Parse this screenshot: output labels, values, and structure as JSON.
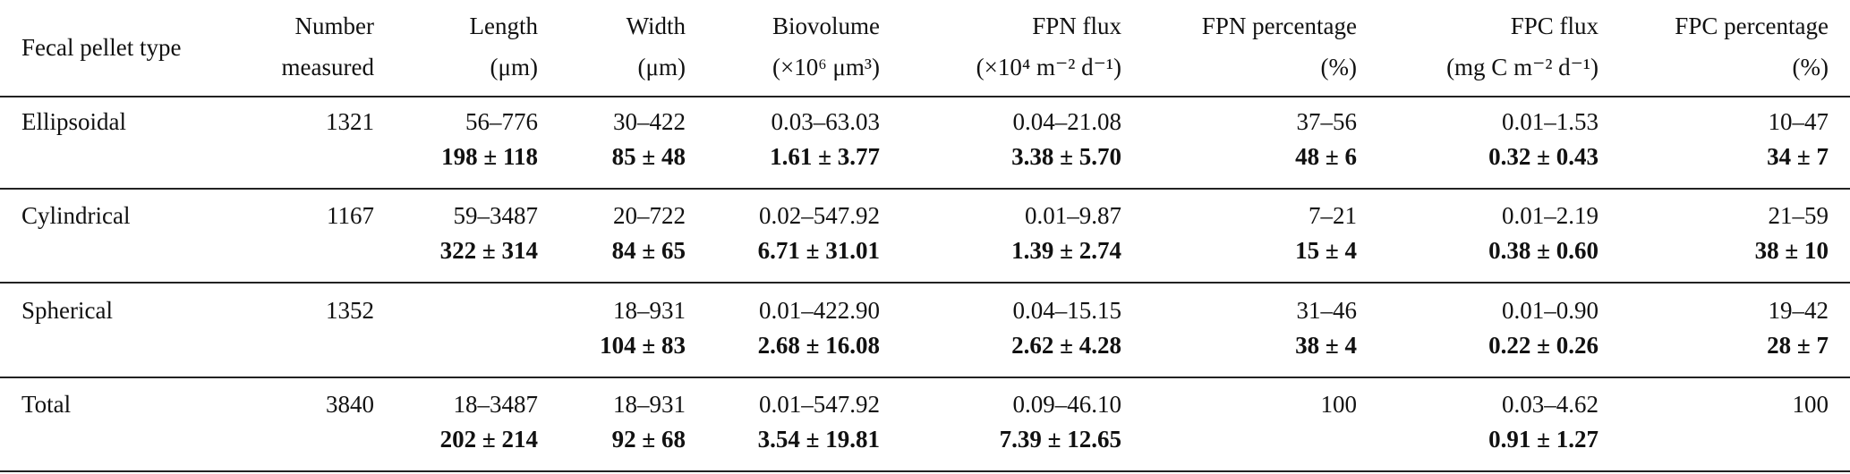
{
  "table": {
    "header": [
      [
        "Fecal pellet type"
      ],
      [
        "Number",
        "measured"
      ],
      [
        "Length",
        "(μm)"
      ],
      [
        "Width",
        "(μm)"
      ],
      [
        "Biovolume",
        "(×10⁶ μm³)"
      ],
      [
        "FPN flux",
        "(×10⁴ m⁻² d⁻¹)"
      ],
      [
        "FPN percentage",
        "(%)"
      ],
      [
        "FPC flux",
        "(mg C m⁻² d⁻¹)"
      ],
      [
        "FPC percentage",
        "(%)"
      ]
    ],
    "rows": [
      {
        "type": "Ellipsoidal",
        "count": 1321,
        "cells": [
          {
            "range": "56–776",
            "mean": "198 ± 118"
          },
          {
            "range": "30–422",
            "mean": "85 ± 48"
          },
          {
            "range": "0.03–63.03",
            "mean": "1.61 ± 3.77"
          },
          {
            "range": "0.04–21.08",
            "mean": "3.38 ± 5.70"
          },
          {
            "range": "37–56",
            "mean": "48 ± 6"
          },
          {
            "range": "0.01–1.53",
            "mean": "0.32 ± 0.43"
          },
          {
            "range": "10–47",
            "mean": "34 ± 7"
          }
        ]
      },
      {
        "type": "Cylindrical",
        "count": 1167,
        "cells": [
          {
            "range": "59–3487",
            "mean": "322 ± 314"
          },
          {
            "range": "20–722",
            "mean": "84 ± 65"
          },
          {
            "range": "0.02–547.92",
            "mean": "6.71 ± 31.01"
          },
          {
            "range": "0.01–9.87",
            "mean": "1.39 ± 2.74"
          },
          {
            "range": "7–21",
            "mean": "15 ± 4"
          },
          {
            "range": "0.01–2.19",
            "mean": "0.38 ± 0.60"
          },
          {
            "range": "21–59",
            "mean": "38 ± 10"
          }
        ]
      },
      {
        "type": "Spherical",
        "count": 1352,
        "cells": [
          null,
          {
            "range": "18–931",
            "mean": "104 ± 83"
          },
          {
            "range": "0.01–422.90",
            "mean": "2.68 ± 16.08"
          },
          {
            "range": "0.04–15.15",
            "mean": "2.62 ± 4.28"
          },
          {
            "range": "31–46",
            "mean": "38 ± 4"
          },
          {
            "range": "0.01–0.90",
            "mean": "0.22 ± 0.26"
          },
          {
            "range": "19–42",
            "mean": "28 ± 7"
          }
        ]
      },
      {
        "type": "Total",
        "count": 3840,
        "cells": [
          {
            "range": "18–3487",
            "mean": "202 ± 214"
          },
          {
            "range": "18–931",
            "mean": "92 ± 68"
          },
          {
            "range": "0.01–547.92",
            "mean": "3.54 ± 19.81"
          },
          {
            "range": "0.09–46.10",
            "mean": "7.39 ± 12.65"
          },
          {
            "range": "100"
          },
          {
            "range": "0.03–4.62",
            "mean": "0.91 ± 1.27"
          },
          {
            "range": "100"
          }
        ]
      }
    ]
  }
}
